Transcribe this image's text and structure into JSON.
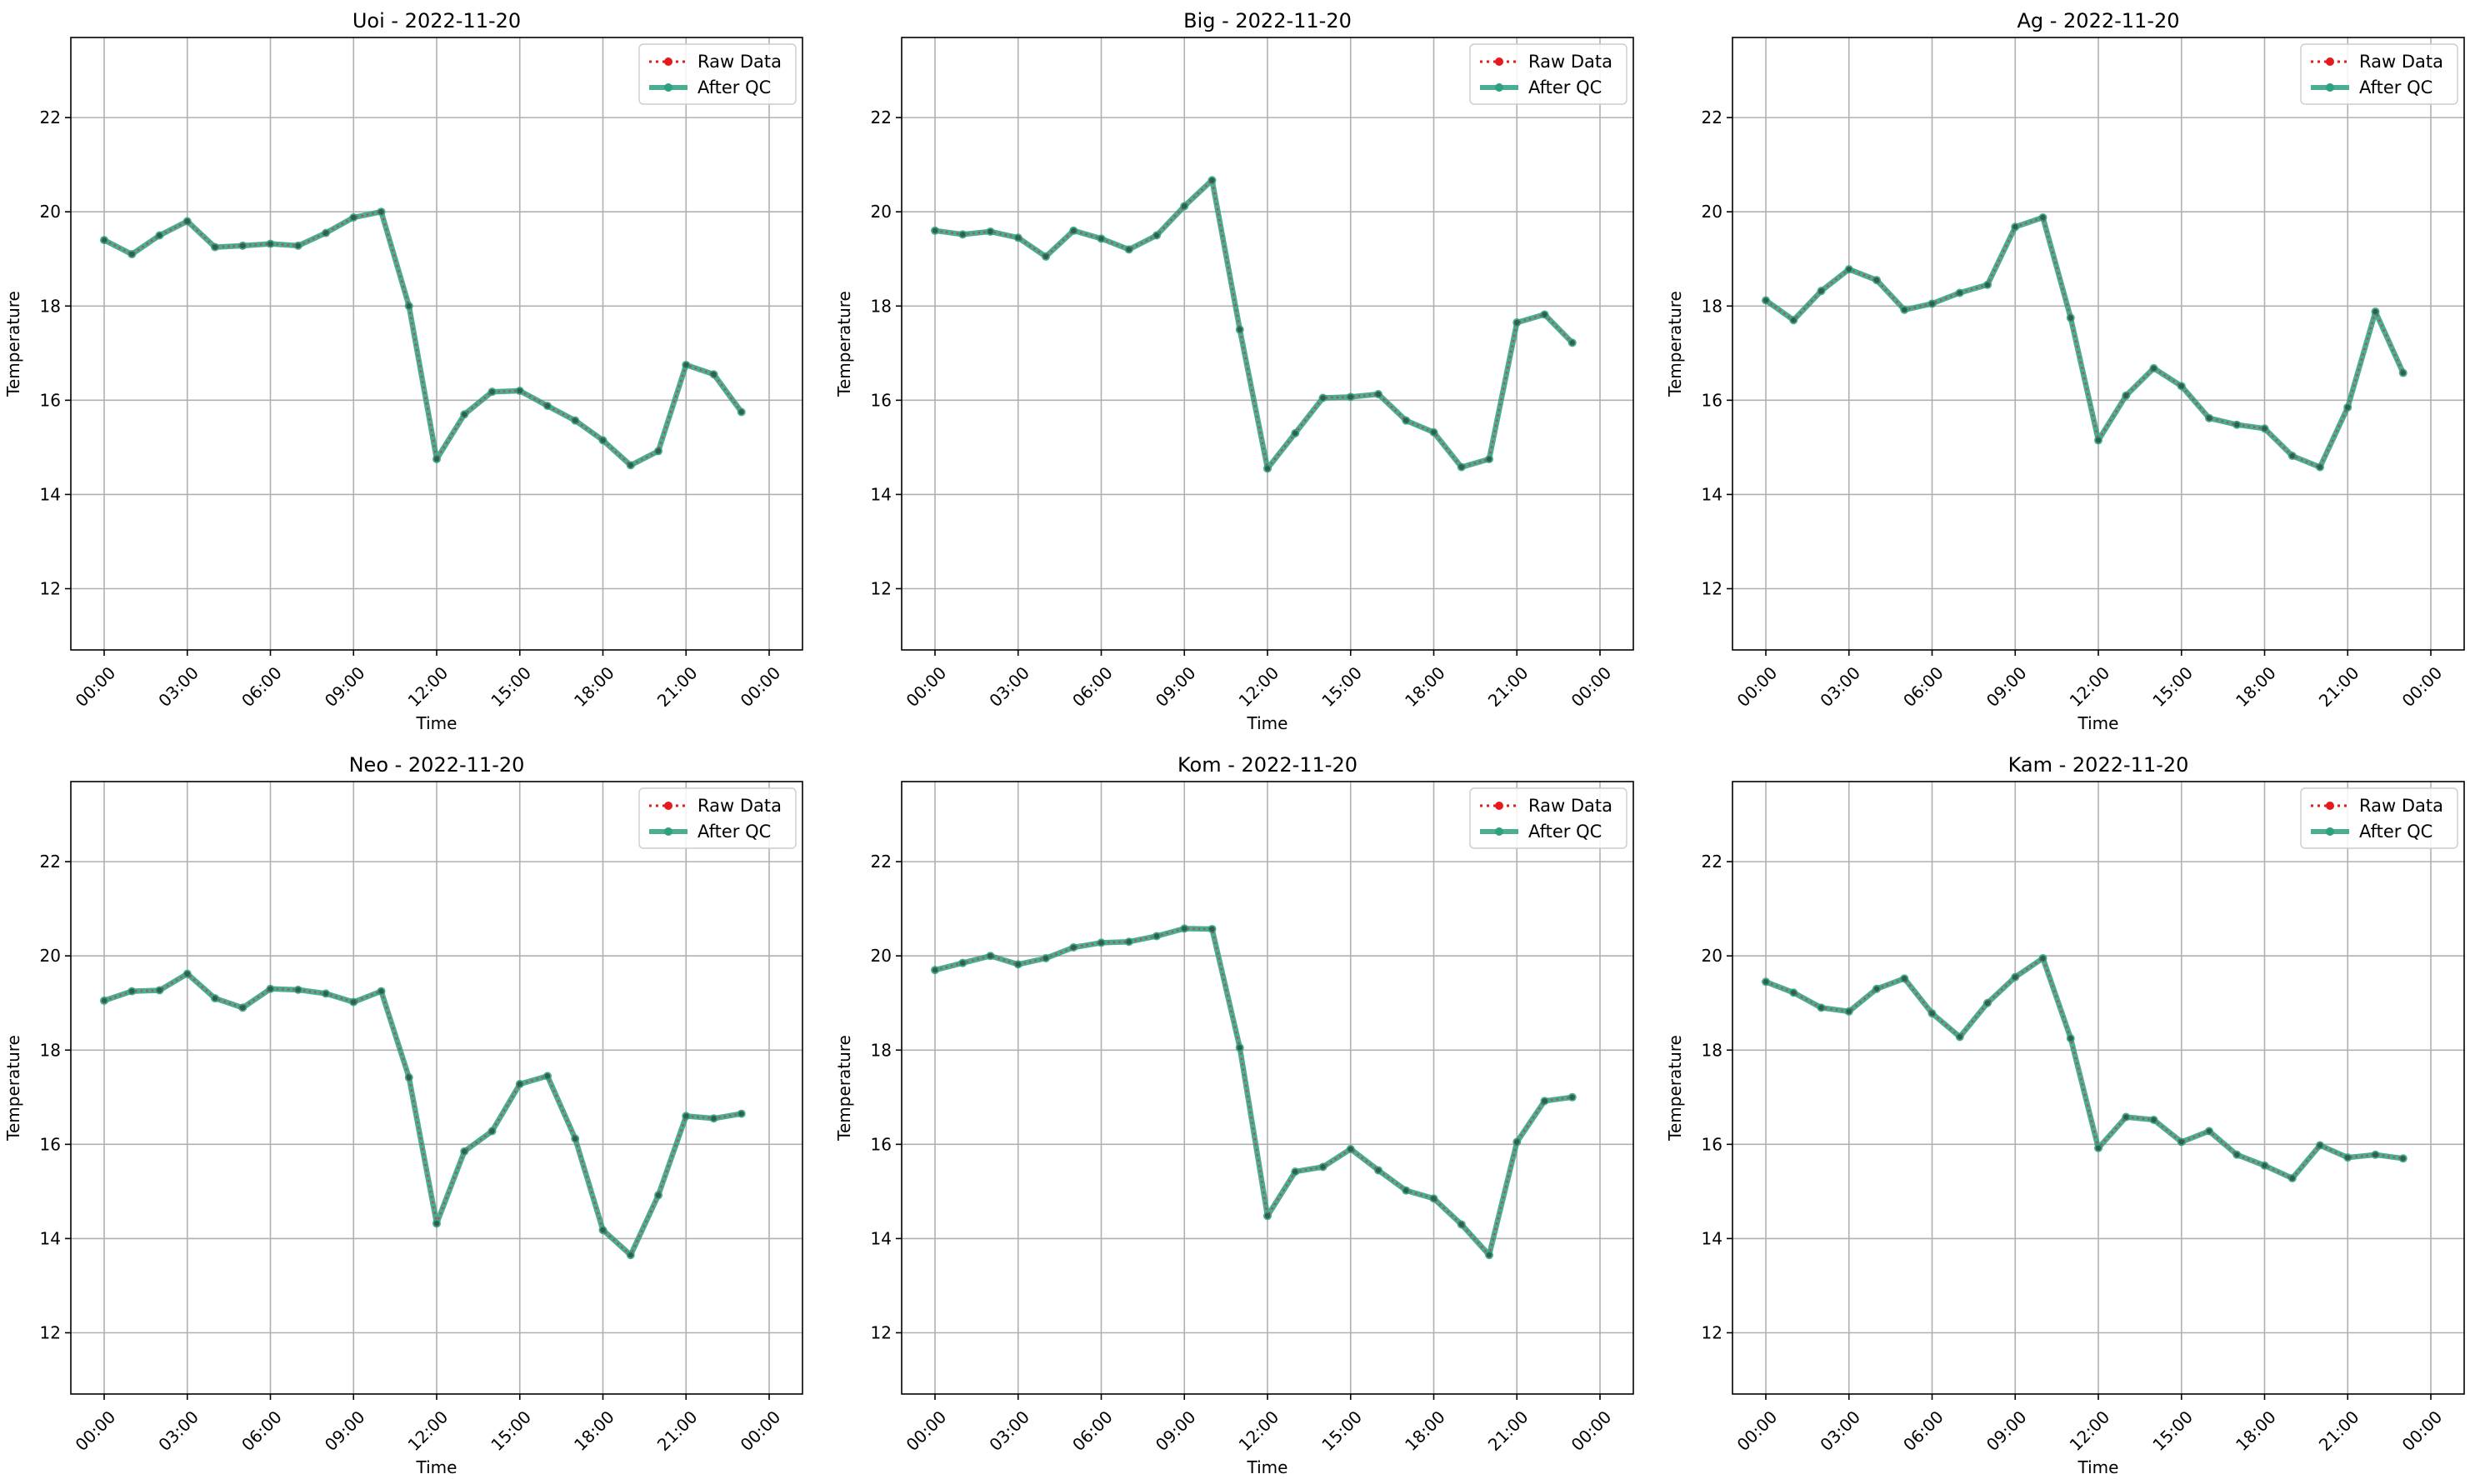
{
  "chart_data": [
    {
      "type": "line",
      "title": "Uoi - 2022-11-20",
      "xlabel": "Time",
      "ylabel": "Temperature",
      "xticks": [
        "00:00",
        "03:00",
        "06:00",
        "09:00",
        "12:00",
        "15:00",
        "18:00",
        "21:00",
        "00:00"
      ],
      "yticks": [
        "12",
        "14",
        "16",
        "18",
        "20",
        "22"
      ],
      "ylim": [
        10.7,
        23.7
      ],
      "grid": true,
      "legend": "top-right",
      "x": [
        0,
        1,
        2,
        3,
        4,
        5,
        6,
        7,
        8,
        9,
        10,
        11,
        12,
        13,
        14,
        15,
        16,
        17,
        18,
        19,
        20,
        21,
        22,
        23
      ],
      "series": [
        {
          "name": "Raw Data",
          "color": "#e41a1c",
          "values": [
            19.4,
            19.1,
            19.5,
            19.8,
            19.25,
            19.28,
            19.32,
            19.28,
            19.55,
            19.88,
            20.0,
            18.0,
            14.75,
            15.7,
            16.18,
            16.2,
            15.88,
            15.57,
            15.15,
            14.62,
            14.92,
            16.75,
            16.55,
            15.75
          ]
        },
        {
          "name": "After QC",
          "color": "#2ca07f",
          "values": [
            19.4,
            19.1,
            19.5,
            19.8,
            19.25,
            19.28,
            19.32,
            19.28,
            19.55,
            19.88,
            20.0,
            18.0,
            14.75,
            15.7,
            16.18,
            16.2,
            15.88,
            15.57,
            15.15,
            14.62,
            14.92,
            16.75,
            16.55,
            15.75
          ]
        }
      ]
    },
    {
      "type": "line",
      "title": "Big - 2022-11-20",
      "xlabel": "Time",
      "ylabel": "Temperature",
      "xticks": [
        "00:00",
        "03:00",
        "06:00",
        "09:00",
        "12:00",
        "15:00",
        "18:00",
        "21:00",
        "00:00"
      ],
      "yticks": [
        "12",
        "14",
        "16",
        "18",
        "20",
        "22"
      ],
      "ylim": [
        10.7,
        23.7
      ],
      "grid": true,
      "legend": "top-right",
      "x": [
        0,
        1,
        2,
        3,
        4,
        5,
        6,
        7,
        8,
        9,
        10,
        11,
        12,
        13,
        14,
        15,
        16,
        17,
        18,
        19,
        20,
        21,
        22,
        23
      ],
      "series": [
        {
          "name": "Raw Data",
          "color": "#e41a1c",
          "values": [
            19.6,
            19.52,
            19.58,
            19.45,
            19.05,
            19.6,
            19.43,
            19.2,
            19.5,
            20.12,
            20.67,
            17.5,
            14.55,
            15.3,
            16.05,
            16.07,
            16.13,
            15.57,
            15.32,
            14.58,
            14.75,
            17.65,
            17.82,
            17.22
          ]
        },
        {
          "name": "After QC",
          "color": "#2ca07f",
          "values": [
            19.6,
            19.52,
            19.58,
            19.45,
            19.05,
            19.6,
            19.43,
            19.2,
            19.5,
            20.12,
            20.67,
            17.5,
            14.55,
            15.3,
            16.05,
            16.07,
            16.13,
            15.57,
            15.32,
            14.58,
            14.75,
            17.65,
            17.82,
            17.22
          ]
        }
      ]
    },
    {
      "type": "line",
      "title": "Ag - 2022-11-20",
      "xlabel": "Time",
      "ylabel": "Temperature",
      "xticks": [
        "00:00",
        "03:00",
        "06:00",
        "09:00",
        "12:00",
        "15:00",
        "18:00",
        "21:00",
        "00:00"
      ],
      "yticks": [
        "12",
        "14",
        "16",
        "18",
        "20",
        "22"
      ],
      "ylim": [
        10.7,
        23.7
      ],
      "grid": true,
      "legend": "top-right",
      "x": [
        0,
        1,
        2,
        3,
        4,
        5,
        6,
        7,
        8,
        9,
        10,
        11,
        12,
        13,
        14,
        15,
        16,
        17,
        18,
        19,
        20,
        21,
        22,
        23
      ],
      "series": [
        {
          "name": "Raw Data",
          "color": "#e41a1c",
          "values": [
            18.12,
            17.7,
            18.32,
            18.78,
            18.55,
            17.92,
            18.05,
            18.28,
            18.45,
            19.68,
            19.88,
            17.75,
            15.15,
            16.1,
            16.68,
            16.3,
            15.62,
            15.48,
            15.4,
            14.82,
            14.58,
            15.85,
            17.88,
            16.58
          ]
        },
        {
          "name": "After QC",
          "color": "#2ca07f",
          "values": [
            18.12,
            17.7,
            18.32,
            18.78,
            18.55,
            17.92,
            18.05,
            18.28,
            18.45,
            19.68,
            19.88,
            17.75,
            15.15,
            16.1,
            16.68,
            16.3,
            15.62,
            15.48,
            15.4,
            14.82,
            14.58,
            15.85,
            17.88,
            16.58
          ]
        }
      ]
    },
    {
      "type": "line",
      "title": "Neo - 2022-11-20",
      "xlabel": "Time",
      "ylabel": "Temperature",
      "xticks": [
        "00:00",
        "03:00",
        "06:00",
        "09:00",
        "12:00",
        "15:00",
        "18:00",
        "21:00",
        "00:00"
      ],
      "yticks": [
        "12",
        "14",
        "16",
        "18",
        "20",
        "22"
      ],
      "ylim": [
        10.7,
        23.7
      ],
      "grid": true,
      "legend": "top-right",
      "x": [
        0,
        1,
        2,
        3,
        4,
        5,
        6,
        7,
        8,
        9,
        10,
        11,
        12,
        13,
        14,
        15,
        16,
        17,
        18,
        19,
        20,
        21,
        22,
        23
      ],
      "series": [
        {
          "name": "Raw Data",
          "color": "#e41a1c",
          "values": [
            19.05,
            19.25,
            19.27,
            19.62,
            19.1,
            18.9,
            19.3,
            19.28,
            19.2,
            19.02,
            19.25,
            17.42,
            14.32,
            15.85,
            16.28,
            17.28,
            17.45,
            16.12,
            14.18,
            13.65,
            14.92,
            16.6,
            16.55,
            16.65
          ]
        },
        {
          "name": "After QC",
          "color": "#2ca07f",
          "values": [
            19.05,
            19.25,
            19.27,
            19.62,
            19.1,
            18.9,
            19.3,
            19.28,
            19.2,
            19.02,
            19.25,
            17.42,
            14.32,
            15.85,
            16.28,
            17.28,
            17.45,
            16.12,
            14.18,
            13.65,
            14.92,
            16.6,
            16.55,
            16.65
          ]
        }
      ]
    },
    {
      "type": "line",
      "title": "Kom - 2022-11-20",
      "xlabel": "Time",
      "ylabel": "Temperature",
      "xticks": [
        "00:00",
        "03:00",
        "06:00",
        "09:00",
        "12:00",
        "15:00",
        "18:00",
        "21:00",
        "00:00"
      ],
      "yticks": [
        "12",
        "14",
        "16",
        "18",
        "20",
        "22"
      ],
      "ylim": [
        10.7,
        23.7
      ],
      "grid": true,
      "legend": "top-right",
      "x": [
        0,
        1,
        2,
        3,
        4,
        5,
        6,
        7,
        8,
        9,
        10,
        11,
        12,
        13,
        14,
        15,
        16,
        17,
        18,
        19,
        20,
        21,
        22,
        23
      ],
      "series": [
        {
          "name": "Raw Data",
          "color": "#e41a1c",
          "values": [
            19.7,
            19.85,
            20.0,
            19.82,
            19.95,
            20.18,
            20.28,
            20.3,
            20.42,
            20.58,
            20.57,
            18.05,
            14.48,
            15.42,
            15.52,
            15.9,
            15.45,
            15.02,
            14.85,
            14.3,
            13.65,
            16.05,
            16.92,
            17.0
          ]
        },
        {
          "name": "After QC",
          "color": "#2ca07f",
          "values": [
            19.7,
            19.85,
            20.0,
            19.82,
            19.95,
            20.18,
            20.28,
            20.3,
            20.42,
            20.58,
            20.57,
            18.05,
            14.48,
            15.42,
            15.52,
            15.9,
            15.45,
            15.02,
            14.85,
            14.3,
            13.65,
            16.05,
            16.92,
            17.0
          ]
        }
      ]
    },
    {
      "type": "line",
      "title": "Kam - 2022-11-20",
      "xlabel": "Time",
      "ylabel": "Temperature",
      "xticks": [
        "00:00",
        "03:00",
        "06:00",
        "09:00",
        "12:00",
        "15:00",
        "18:00",
        "21:00",
        "00:00"
      ],
      "yticks": [
        "12",
        "14",
        "16",
        "18",
        "20",
        "22"
      ],
      "ylim": [
        10.7,
        23.7
      ],
      "grid": true,
      "legend": "top-right",
      "x": [
        0,
        1,
        2,
        3,
        4,
        5,
        6,
        7,
        8,
        9,
        10,
        11,
        12,
        13,
        14,
        15,
        16,
        17,
        18,
        19,
        20,
        21,
        22,
        23
      ],
      "series": [
        {
          "name": "Raw Data",
          "color": "#e41a1c",
          "values": [
            19.45,
            19.22,
            18.9,
            18.82,
            19.3,
            19.52,
            18.78,
            18.28,
            19.0,
            19.55,
            19.95,
            18.25,
            15.92,
            16.58,
            16.52,
            16.05,
            16.28,
            15.78,
            15.55,
            15.28,
            15.98,
            15.72,
            15.78,
            15.7
          ]
        },
        {
          "name": "After QC",
          "color": "#2ca07f",
          "values": [
            19.45,
            19.22,
            18.9,
            18.82,
            19.3,
            19.52,
            18.78,
            18.28,
            19.0,
            19.55,
            19.95,
            18.25,
            15.92,
            16.58,
            16.52,
            16.05,
            16.28,
            15.78,
            15.55,
            15.28,
            15.98,
            15.72,
            15.78,
            15.7
          ]
        }
      ]
    }
  ]
}
